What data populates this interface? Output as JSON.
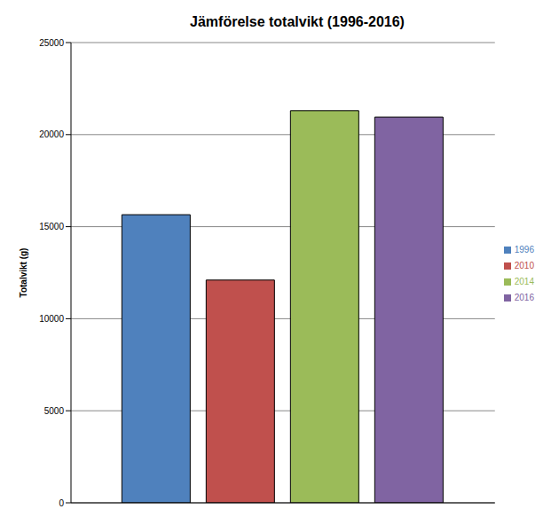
{
  "chart_data": {
    "type": "bar",
    "title": "Jämförelse totalvikt (1996-2016)",
    "y_label": "Totalvikt (g)",
    "categories": [
      null
    ],
    "series": [
      {
        "name": "1996",
        "color": "#4f81bd",
        "values": [
          15650
        ]
      },
      {
        "name": "2010",
        "color": "#c0504d",
        "values": [
          12100
        ]
      },
      {
        "name": "2014",
        "color": "#9bbb59",
        "values": [
          21300
        ]
      },
      {
        "name": "2016",
        "color": "#8064a2",
        "values": [
          20950
        ]
      }
    ],
    "ylim": [
      0,
      25000
    ],
    "yticks": [
      0,
      5000,
      10000,
      15000,
      20000,
      25000
    ],
    "grid": true,
    "legend": "right",
    "tick_labels": "y"
  }
}
